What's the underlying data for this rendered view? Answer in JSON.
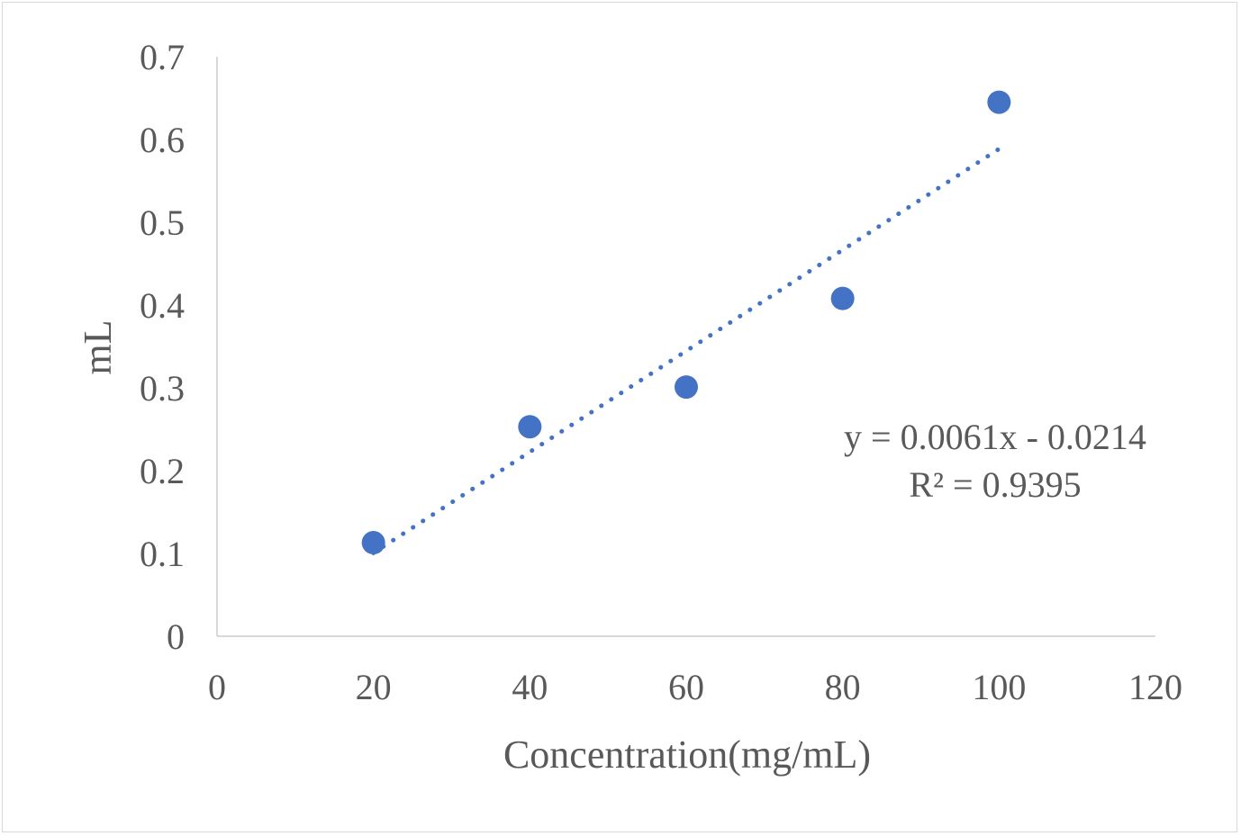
{
  "chart_data": {
    "type": "scatter",
    "title": "",
    "xlabel": "Concentration(mg/mL)",
    "ylabel": "mL",
    "xlim": [
      0,
      120
    ],
    "ylim": [
      0,
      0.7
    ],
    "x_ticks": [
      0,
      20,
      40,
      60,
      80,
      100,
      120
    ],
    "y_ticks": [
      0,
      0.1,
      0.2,
      0.3,
      0.4,
      0.5,
      0.6,
      0.7
    ],
    "x_tick_labels": [
      "0",
      "20",
      "40",
      "60",
      "80",
      "100",
      "120"
    ],
    "y_tick_labels": [
      "0",
      "0.1",
      "0.2",
      "0.3",
      "0.4",
      "0.5",
      "0.6",
      "0.7"
    ],
    "grid": false,
    "legend": "none",
    "series": [
      {
        "x": [
          20,
          40,
          60,
          80,
          100
        ],
        "y": [
          0.113,
          0.253,
          0.301,
          0.408,
          0.645
        ],
        "color": "#4472c4",
        "marker": "circle"
      }
    ],
    "trendline": {
      "type": "linear",
      "slope": 0.0061,
      "intercept": -0.0214,
      "x_range": [
        20,
        100
      ],
      "style": "dotted",
      "color": "#4472c4"
    },
    "annotations": {
      "equation": "y = 0.0061x - 0.0214",
      "r_squared": "R² = 0.9395"
    },
    "axis_color": "#d9d9d9",
    "text_color": "#595959"
  }
}
